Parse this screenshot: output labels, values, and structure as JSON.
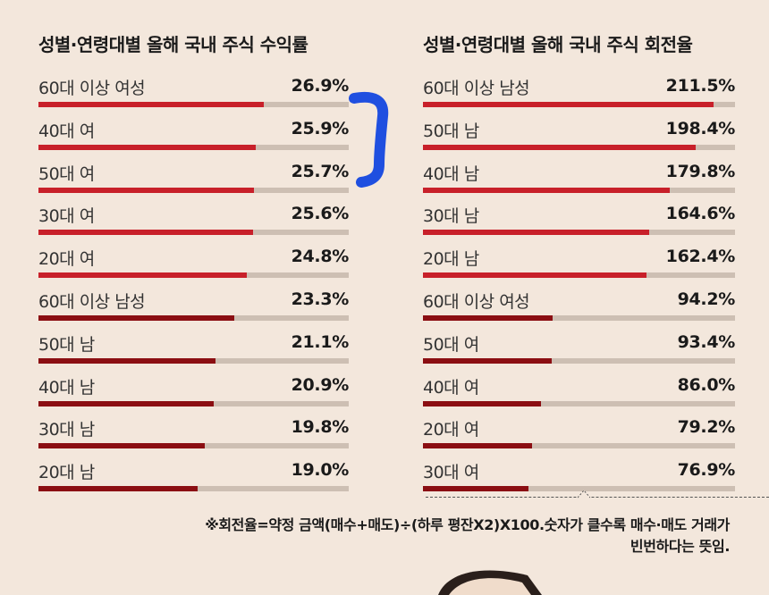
{
  "chart_data": [
    {
      "type": "bar",
      "title": "성별·연령대별 올해 국내 주식 수익률",
      "categories": [
        "60대 이상 여성",
        "40대 여",
        "50대 여",
        "30대 여",
        "20대 여",
        "60대 이상 남성",
        "50대 남",
        "40대 남",
        "30대 남",
        "20대 남"
      ],
      "values": [
        26.9,
        25.9,
        25.7,
        25.6,
        24.8,
        23.3,
        21.1,
        20.9,
        19.8,
        19.0
      ],
      "labels": [
        "26.9%",
        "25.9%",
        "25.7%",
        "25.6%",
        "24.8%",
        "23.3%",
        "21.1%",
        "20.9%",
        "19.8%",
        "19.0%"
      ],
      "colors": [
        "#c8202a",
        "#c8202a",
        "#c8202a",
        "#c8202a",
        "#c8202a",
        "#8b0e12",
        "#8b0e12",
        "#8b0e12",
        "#8b0e12",
        "#8b0e12"
      ],
      "xlim": [
        0,
        37
      ],
      "orientation": "horizontal"
    },
    {
      "type": "bar",
      "title": "성별·연령대별 올해 국내 주식 회전율",
      "categories": [
        "60대 이상 남성",
        "50대 남",
        "40대 남",
        "30대 남",
        "20대 남",
        "60대 이상 여성",
        "50대 여",
        "40대 여",
        "20대 여",
        "30대 여"
      ],
      "values": [
        211.5,
        198.4,
        179.8,
        164.6,
        162.4,
        94.2,
        93.4,
        86.0,
        79.2,
        76.9
      ],
      "labels": [
        "211.5%",
        "198.4%",
        "179.8%",
        "164.6%",
        "162.4%",
        "94.2%",
        "93.4%",
        "86.0%",
        "79.2%",
        "76.9%"
      ],
      "colors": [
        "#c8202a",
        "#c8202a",
        "#c8202a",
        "#c8202a",
        "#c8202a",
        "#8b0e12",
        "#8b0e12",
        "#8b0e12",
        "#8b0e12",
        "#8b0e12"
      ],
      "xlim": [
        0,
        227
      ],
      "orientation": "horizontal"
    }
  ],
  "footnote": {
    "line1": "※회전율=약정 금액(매수+매도)÷(하루 평잔X2)X100.숫자가 클수록 매수·매도 거래가",
    "line2": "빈번하다는 뜻임."
  },
  "annotation_color": "#1f4fe0"
}
